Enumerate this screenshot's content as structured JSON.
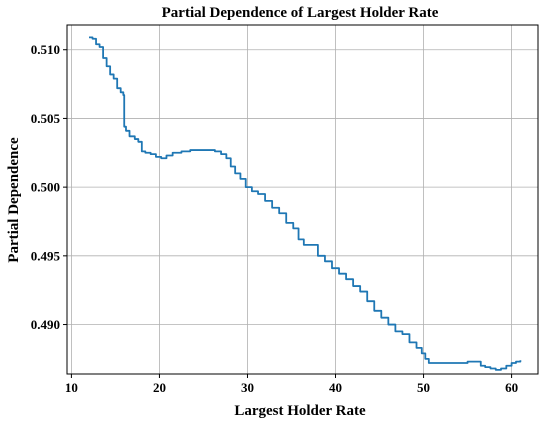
{
  "chart_data": {
    "type": "line",
    "title": "Partial Dependence of Largest Holder Rate",
    "xlabel": "Largest Holder Rate",
    "ylabel": "Partial Dependence",
    "xlim": [
      9.5,
      63
    ],
    "ylim": [
      0.4864,
      0.5118
    ],
    "xticks": [
      10,
      20,
      30,
      40,
      50,
      60
    ],
    "yticks": [
      0.49,
      0.495,
      0.5,
      0.505,
      0.51
    ],
    "ytick_labels": [
      "0.490",
      "0.495",
      "0.500",
      "0.505",
      "0.510"
    ],
    "grid": true,
    "color": "#1f77b4",
    "x": [
      12.0,
      12.4,
      12.8,
      13.2,
      13.6,
      14.0,
      14.4,
      14.8,
      15.2,
      15.6,
      15.9,
      16.0,
      16.2,
      16.6,
      17.2,
      17.6,
      18.0,
      18.4,
      19.0,
      19.6,
      20.2,
      20.8,
      21.5,
      22.5,
      23.5,
      24.5,
      25.5,
      26.3,
      27.0,
      27.6,
      28.1,
      28.6,
      29.2,
      29.8,
      30.5,
      31.2,
      32.0,
      32.8,
      33.6,
      34.4,
      35.2,
      35.8,
      36.4,
      37.2,
      38.0,
      38.8,
      39.6,
      40.4,
      41.2,
      42.0,
      42.8,
      43.6,
      44.4,
      45.2,
      46.0,
      46.8,
      47.6,
      48.4,
      49.2,
      49.8,
      50.2,
      50.6,
      51.2,
      52.0,
      53.0,
      54.0,
      55.0,
      56.0,
      56.5,
      57.0,
      57.6,
      58.2,
      58.8,
      59.4,
      60.0,
      60.5,
      61.0
    ],
    "y": [
      0.5109,
      0.5108,
      0.5104,
      0.5102,
      0.5094,
      0.5088,
      0.5082,
      0.5079,
      0.5072,
      0.5069,
      0.5067,
      0.5044,
      0.5041,
      0.5037,
      0.5035,
      0.5033,
      0.5026,
      0.5025,
      0.5024,
      0.5022,
      0.5021,
      0.5023,
      0.5025,
      0.5026,
      0.5027,
      0.5027,
      0.5027,
      0.5026,
      0.5024,
      0.5021,
      0.5015,
      0.501,
      0.5006,
      0.5,
      0.4997,
      0.4995,
      0.499,
      0.4985,
      0.4981,
      0.4974,
      0.497,
      0.4962,
      0.4958,
      0.4958,
      0.495,
      0.4946,
      0.4941,
      0.4937,
      0.4933,
      0.4928,
      0.4924,
      0.4917,
      0.491,
      0.4905,
      0.49,
      0.4895,
      0.4893,
      0.4887,
      0.4883,
      0.4879,
      0.4875,
      0.4872,
      0.4872,
      0.4872,
      0.4872,
      0.4872,
      0.4873,
      0.4873,
      0.487,
      0.4869,
      0.4868,
      0.4867,
      0.4868,
      0.487,
      0.4872,
      0.4873,
      0.4874
    ]
  }
}
